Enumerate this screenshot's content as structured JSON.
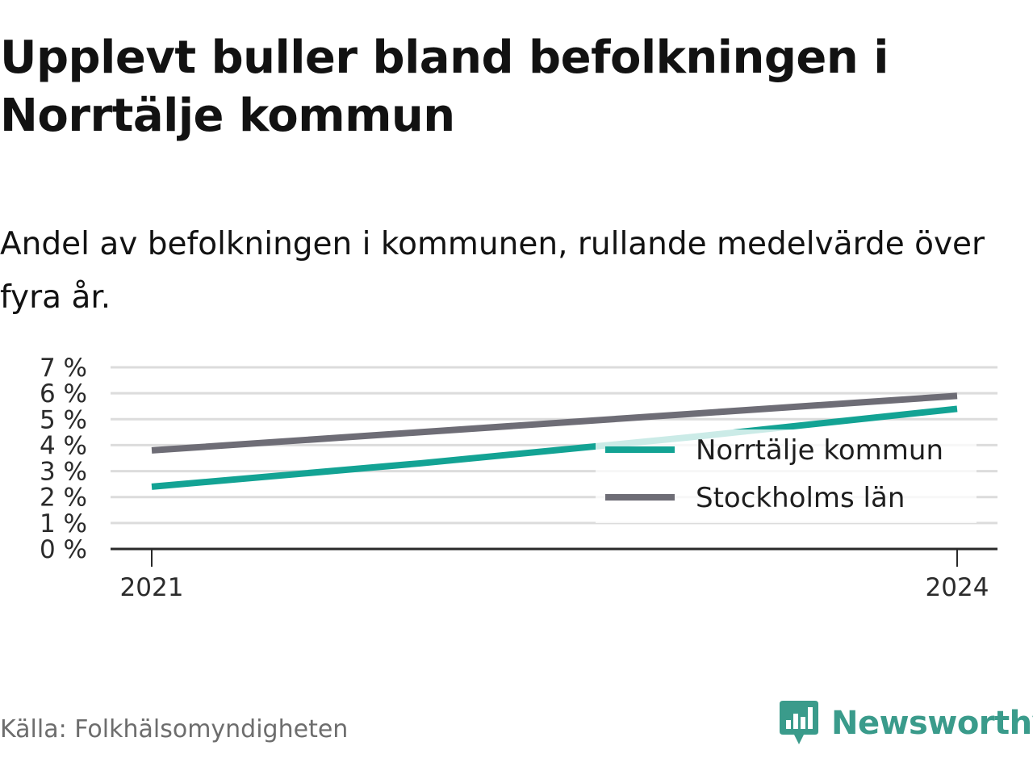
{
  "title": "Upplevt buller bland befolkningen i Norrtälje kommun",
  "subtitle": "Andel av befolkningen i kommunen, rullande medelvärde över fyra år.",
  "source": "Källa: Folkhälsomyndigheten",
  "brand": {
    "name": "Newsworthy",
    "icon": "newsworthy-logo-icon",
    "color": "#3a9b8b"
  },
  "chart_data": {
    "type": "line",
    "x": [
      2021,
      2022,
      2023,
      2024
    ],
    "x_tick_labels": [
      "2021",
      "2024"
    ],
    "y_tick_labels": [
      "0 %",
      "1 %",
      "2 %",
      "3 %",
      "4 %",
      "5 %",
      "6 %",
      "7 %"
    ],
    "ylim": [
      0,
      7
    ],
    "grid": true,
    "legend_position": "bottom-right",
    "series": [
      {
        "name": "Norrtälje kommun",
        "color": "#13a394",
        "values": [
          2.4,
          3.3,
          4.3,
          5.4
        ]
      },
      {
        "name": "Stockholms län",
        "color": "#6e6d76",
        "values": [
          3.8,
          4.5,
          5.2,
          5.9
        ]
      }
    ]
  }
}
